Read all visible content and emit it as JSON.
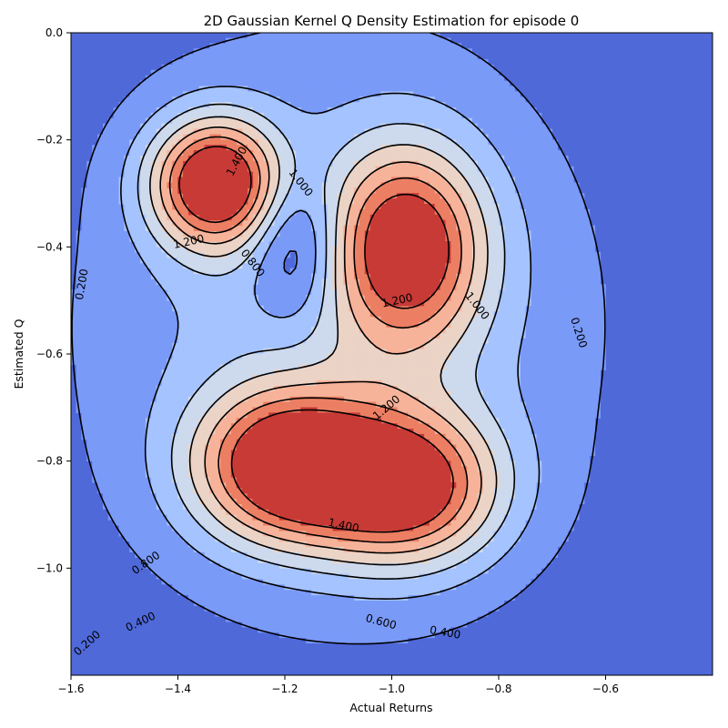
{
  "chart_data": {
    "type": "contour",
    "title": "2D Gaussian Kernel Q Density Estimation for episode 0",
    "xlabel": "Actual Returns",
    "ylabel": "Estimated Q",
    "xlim": [
      -1.6,
      -0.4
    ],
    "ylim": [
      -1.2,
      0.0
    ],
    "x_ticks": [
      -1.6,
      -1.4,
      -1.2,
      -1.0,
      -0.8,
      -0.6
    ],
    "x_tick_labels": [
      "−1.6",
      "−1.4",
      "−1.2",
      "−1.0",
      "−0.8",
      "−0.6"
    ],
    "y_ticks": [
      0.0,
      -0.2,
      -0.4,
      -0.6,
      -0.8,
      -1.0
    ],
    "y_tick_labels": [
      "0.0",
      "−0.2",
      "−0.4",
      "−0.6",
      "−0.8",
      "−1.0"
    ],
    "grid": false,
    "colormap": "coolwarm",
    "levels": [
      0.2,
      0.4,
      0.6,
      0.8,
      1.0,
      1.2,
      1.4
    ],
    "band_colors": [
      "#4f69d9",
      "#7a9af8",
      "#a5c3fe",
      "#cdd9ec",
      "#ebd3c6",
      "#f6b39a",
      "#ec7f63",
      "#c83a36"
    ],
    "line_color": "#000000",
    "peaks": [
      {
        "x": -1.33,
        "y": -0.28,
        "density": 1.5
      },
      {
        "x": -0.97,
        "y": -0.4,
        "density": 1.3
      },
      {
        "x": -1.11,
        "y": -0.83,
        "density": 1.5
      }
    ],
    "contour_labels": [
      {
        "text": "1.400",
        "x": -1.29,
        "y": -0.24,
        "angle": 62
      },
      {
        "text": "1.000",
        "x": -1.17,
        "y": -0.28,
        "angle": -52
      },
      {
        "text": "1.200",
        "x": -1.38,
        "y": -0.39,
        "angle": 12
      },
      {
        "text": "0.800",
        "x": -1.26,
        "y": -0.43,
        "angle": -52
      },
      {
        "text": "0.200",
        "x": -1.58,
        "y": -0.47,
        "angle": 80
      },
      {
        "text": "1.200",
        "x": -0.99,
        "y": -0.5,
        "angle": 12
      },
      {
        "text": "1.000",
        "x": -0.84,
        "y": -0.51,
        "angle": -52
      },
      {
        "text": "0.200",
        "x": -0.65,
        "y": -0.56,
        "angle": -72
      },
      {
        "text": "1.200",
        "x": -1.01,
        "y": -0.7,
        "angle": 40
      },
      {
        "text": "1.400",
        "x": -1.09,
        "y": -0.92,
        "angle": -12
      },
      {
        "text": "0.800",
        "x": -1.46,
        "y": -0.99,
        "angle": 35
      },
      {
        "text": "0.400",
        "x": -1.47,
        "y": -1.1,
        "angle": 25
      },
      {
        "text": "0.600",
        "x": -1.02,
        "y": -1.1,
        "angle": -15
      },
      {
        "text": "0.400",
        "x": -0.9,
        "y": -1.12,
        "angle": -10
      },
      {
        "text": "0.200",
        "x": -1.57,
        "y": -1.14,
        "angle": 42
      }
    ]
  }
}
